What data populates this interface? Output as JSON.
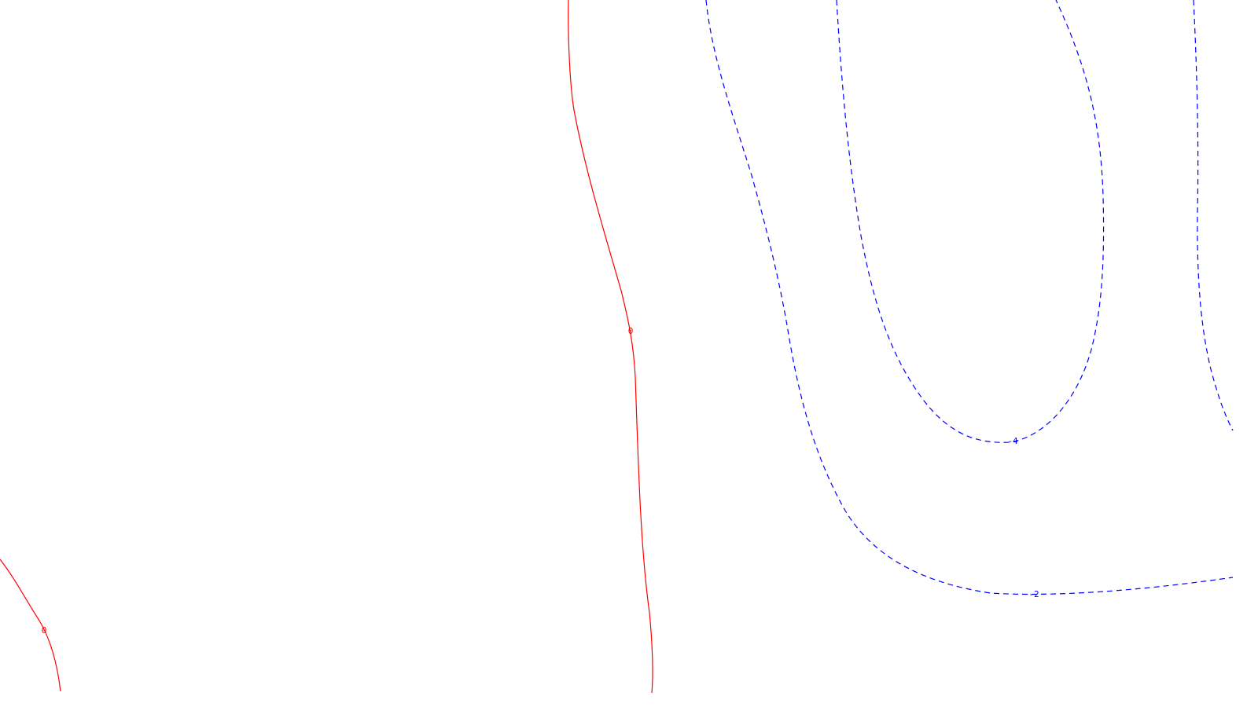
{
  "chart_data": {
    "type": "contour",
    "title": "",
    "xlabel": "",
    "ylabel": "",
    "colors": {
      "positive": "#ff0000",
      "negative": "#0000ff"
    },
    "contours": [
      {
        "level": 0,
        "label": "0",
        "style": "solid",
        "color": "#ff0000"
      },
      {
        "level": 0,
        "label": "0",
        "style": "solid",
        "color": "#ff0000"
      },
      {
        "level": -2,
        "label": "-2",
        "style": "dashed",
        "color": "#0000ff"
      },
      {
        "level": -4,
        "label": "-4",
        "style": "dashed",
        "color": "#0000ff"
      },
      {
        "level": -2,
        "label": "",
        "style": "dashed",
        "color": "#0000ff"
      }
    ]
  }
}
